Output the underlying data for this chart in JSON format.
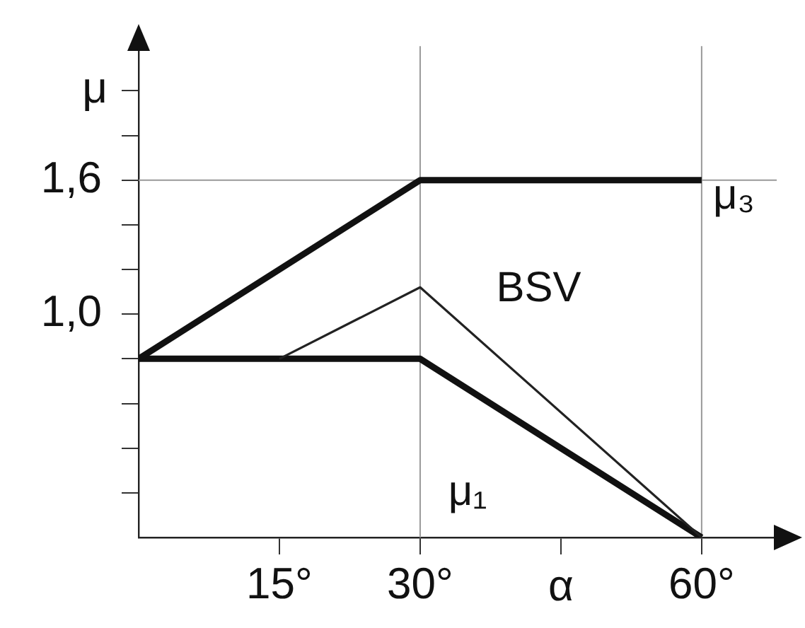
{
  "chart_data": {
    "type": "line",
    "xlabel": "α",
    "ylabel": "μ",
    "xlim": [
      0,
      68
    ],
    "xticks": [
      {
        "value": 15,
        "label": "15°"
      },
      {
        "value": 30,
        "label": "30°"
      },
      {
        "value": 45,
        "label": null
      },
      {
        "value": 60,
        "label": "60°"
      }
    ],
    "ylim": [
      0,
      2.2
    ],
    "yticks": [
      {
        "value": 0.2,
        "label": null
      },
      {
        "value": 0.4,
        "label": null
      },
      {
        "value": 0.6,
        "label": null
      },
      {
        "value": 0.8,
        "label": null
      },
      {
        "value": 1.0,
        "label": "1,0"
      },
      {
        "value": 1.2,
        "label": null
      },
      {
        "value": 1.4,
        "label": null
      },
      {
        "value": 1.6,
        "label": "1,6"
      },
      {
        "value": 1.8,
        "label": null
      },
      {
        "value": 2.0,
        "label": null
      }
    ],
    "series": [
      {
        "name": "μ₃",
        "color": "#111111",
        "x": [
          0,
          30,
          60
        ],
        "values": [
          0.8,
          1.6,
          1.6
        ]
      },
      {
        "name": "BSV",
        "color": "#222222",
        "x": [
          15,
          30,
          60
        ],
        "values": [
          0.8,
          1.12,
          0
        ]
      },
      {
        "name": "μ₁",
        "color": "#111111",
        "x": [
          0,
          30,
          60
        ],
        "values": [
          0.8,
          0.8,
          0
        ]
      }
    ],
    "ref_lines": [
      {
        "axis": "x",
        "value": 30,
        "color": "#999999"
      },
      {
        "axis": "x",
        "value": 60,
        "color": "#999999"
      },
      {
        "axis": "y",
        "value": 1.6,
        "color": "#999999"
      }
    ],
    "grid": false,
    "legend": false,
    "marker": "none",
    "line_style": "solid"
  }
}
